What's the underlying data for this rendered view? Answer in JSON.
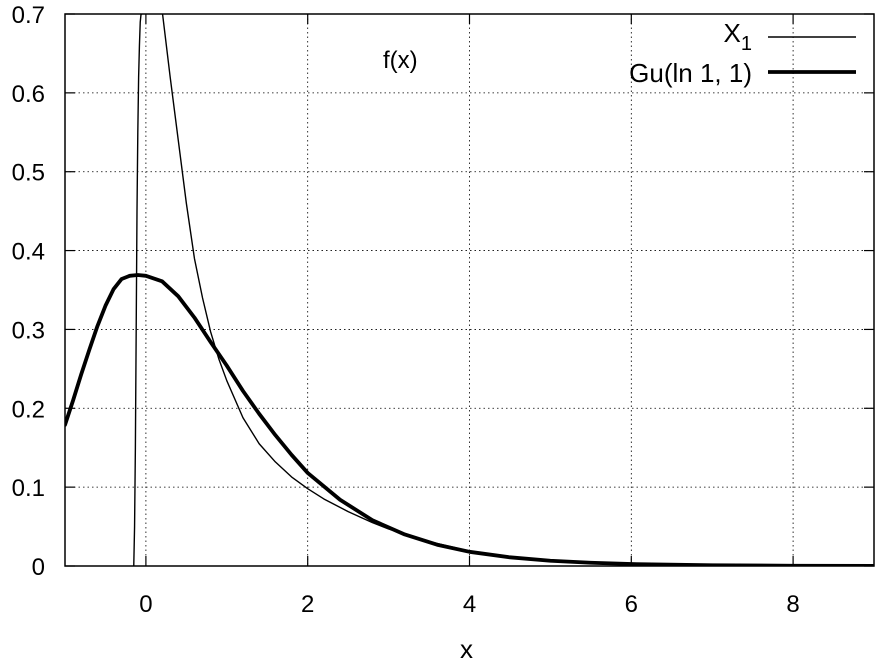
{
  "chart_data": {
    "type": "line",
    "xlabel": "x",
    "annotation": "f(x)",
    "xlim": [
      -1,
      9
    ],
    "ylim": [
      0,
      0.7
    ],
    "xticks": [
      0,
      2,
      4,
      6,
      8
    ],
    "yticks": [
      0,
      0.1,
      0.2,
      0.3,
      0.4,
      0.5,
      0.6,
      0.7
    ],
    "xtick_labels": [
      "0",
      "2",
      "4",
      "6",
      "8"
    ],
    "ytick_labels": [
      "0",
      "0.1",
      "0.2",
      "0.3",
      "0.4",
      "0.5",
      "0.6",
      "0.7"
    ],
    "grid": true,
    "legend_position": "top-right",
    "series": [
      {
        "name": "X",
        "name_sub": "1",
        "style": "thin",
        "color": "#000000",
        "x": [
          -0.15,
          -0.14,
          -0.13,
          -0.12,
          -0.11,
          -0.1,
          -0.09,
          -0.08,
          -0.07,
          -0.06,
          -0.05,
          0.0,
          0.1,
          0.2,
          0.3,
          0.4,
          0.5,
          0.6,
          0.7,
          0.8,
          0.9,
          1.0,
          1.2,
          1.4,
          1.6,
          1.8,
          2.0,
          2.2,
          2.5,
          2.8,
          3.0,
          3.5,
          4.0,
          4.5,
          5.0,
          5.5,
          6.0,
          7.0,
          8.0,
          9.0
        ],
        "y": [
          0.0,
          0.05,
          0.15,
          0.3,
          0.45,
          0.55,
          0.62,
          0.66,
          0.69,
          0.7,
          0.7,
          0.71,
          0.71,
          0.705,
          0.62,
          0.54,
          0.46,
          0.39,
          0.34,
          0.297,
          0.263,
          0.235,
          0.188,
          0.155,
          0.132,
          0.113,
          0.098,
          0.085,
          0.069,
          0.055,
          0.047,
          0.031,
          0.019,
          0.011,
          0.0067,
          0.0041,
          0.0025,
          0.0009,
          0.00034,
          0.00012
        ]
      },
      {
        "name": "Gu(ln 1, 1)",
        "style": "thick",
        "color": "#000000",
        "x": [
          -1.0,
          -0.9,
          -0.8,
          -0.7,
          -0.6,
          -0.5,
          -0.4,
          -0.3,
          -0.2,
          -0.1,
          0.0,
          0.2,
          0.4,
          0.6,
          0.8,
          1.0,
          1.2,
          1.4,
          1.6,
          1.8,
          2.0,
          2.4,
          2.8,
          3.2,
          3.6,
          4.0,
          4.5,
          5.0,
          5.5,
          6.0,
          7.0,
          8.0,
          9.0
        ],
        "y": [
          0.179,
          0.21,
          0.243,
          0.274,
          0.304,
          0.33,
          0.351,
          0.364,
          0.368,
          0.369,
          0.368,
          0.361,
          0.342,
          0.315,
          0.284,
          0.254,
          0.222,
          0.193,
          0.166,
          0.141,
          0.118,
          0.084,
          0.058,
          0.04,
          0.027,
          0.018,
          0.011,
          0.0067,
          0.0041,
          0.0025,
          0.0009,
          0.00034,
          0.00012
        ]
      }
    ]
  }
}
